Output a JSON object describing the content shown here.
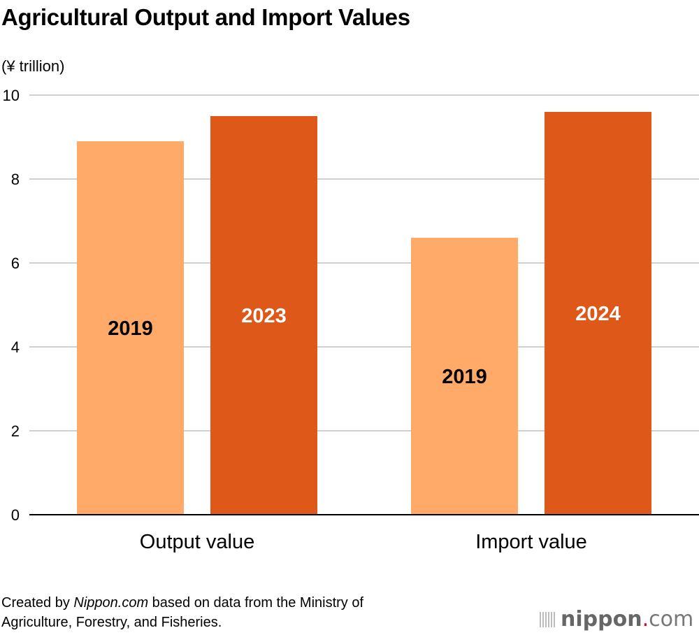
{
  "chart_data": {
    "type": "bar",
    "title": "Agricultural Output and Import Values",
    "ylabel": "(¥ trillion)",
    "xlabel": "",
    "ylim": [
      0,
      10
    ],
    "yticks": [
      0,
      2,
      4,
      6,
      8,
      10
    ],
    "grid": true,
    "categories": [
      "Output value",
      "Import value"
    ],
    "groups": [
      {
        "category": "Output value",
        "bars": [
          {
            "label": "2019",
            "value": 8.9,
            "color": "#FFAA68",
            "label_color": "#000000"
          },
          {
            "label": "2023",
            "value": 9.5,
            "color": "#DE5919",
            "label_color": "#FFFFFF"
          }
        ]
      },
      {
        "category": "Import value",
        "bars": [
          {
            "label": "2019",
            "value": 6.6,
            "color": "#FFAA68",
            "label_color": "#000000"
          },
          {
            "label": "2024",
            "value": 9.6,
            "color": "#DE5919",
            "label_color": "#FFFFFF"
          }
        ]
      }
    ]
  },
  "source": {
    "prefix": "Created by ",
    "site": "Nippon.com",
    "suffix": " based on data from the Ministry of",
    "line2": "Agriculture, Forestry, and Fisheries."
  },
  "logo": {
    "text": "nippon.com"
  }
}
